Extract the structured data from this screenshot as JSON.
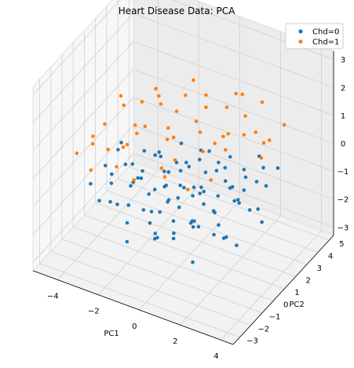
{
  "chart_data": {
    "type": "scatter",
    "projection": "3d",
    "title": "Heart Disease Data: PCA",
    "xlabel": "PC1",
    "ylabel": "PC2",
    "zlabel": "",
    "xlim": [
      -5.2,
      4.6
    ],
    "ylim": [
      -3.6,
      5.4
    ],
    "zlim": [
      -3.3,
      3.3
    ],
    "xticks": [
      -4,
      -2,
      0,
      2,
      4
    ],
    "yticks": [
      -3,
      -2,
      -1,
      0,
      1,
      2,
      3,
      4,
      5
    ],
    "zticks": [
      -3,
      -2,
      -1,
      0,
      1,
      2,
      3
    ],
    "grid": true,
    "legend_position": "top-right",
    "series": [
      {
        "name": "Chd=0",
        "color": "#1f77b4",
        "points": [
          [
            -3.2,
            -2.1,
            -0.3
          ],
          [
            -2.8,
            -1.5,
            0.2
          ],
          [
            -2.5,
            -2.6,
            -0.5
          ],
          [
            -2.2,
            -0.8,
            0.1
          ],
          [
            -2.0,
            -1.9,
            -0.8
          ],
          [
            -1.8,
            -2.8,
            0.4
          ],
          [
            -1.6,
            -1.2,
            -0.2
          ],
          [
            -1.5,
            -0.4,
            0.6
          ],
          [
            -1.3,
            -2.3,
            -1.1
          ],
          [
            -1.1,
            -1.7,
            0.3
          ],
          [
            -1.0,
            -0.9,
            -0.6
          ],
          [
            -0.9,
            -2.9,
            -0.1
          ],
          [
            -0.8,
            -0.2,
            0.5
          ],
          [
            -0.6,
            -1.4,
            -0.9
          ],
          [
            -0.5,
            -2.5,
            0.8
          ],
          [
            -0.4,
            -0.6,
            -0.3
          ],
          [
            -0.3,
            0.3,
            0.2
          ],
          [
            -0.2,
            -1.8,
            -1.4
          ],
          [
            -0.1,
            -1.0,
            0.0
          ],
          [
            0.0,
            -2.2,
            0.4
          ],
          [
            0.1,
            -0.3,
            -0.7
          ],
          [
            0.2,
            0.5,
            0.1
          ],
          [
            0.3,
            -1.5,
            -0.2
          ],
          [
            0.4,
            -2.7,
            -1.0
          ],
          [
            0.5,
            -0.8,
            0.6
          ],
          [
            0.6,
            0.2,
            -0.4
          ],
          [
            0.7,
            -1.2,
            0.3
          ],
          [
            0.8,
            -2.0,
            -0.6
          ],
          [
            0.9,
            0.7,
            0.0
          ],
          [
            1.0,
            -0.5,
            -1.2
          ],
          [
            1.1,
            -1.6,
            0.5
          ],
          [
            1.2,
            0.0,
            -0.3
          ],
          [
            1.3,
            -2.4,
            0.2
          ],
          [
            1.4,
            0.9,
            -0.8
          ],
          [
            1.5,
            -0.9,
            0.1
          ],
          [
            1.6,
            -1.9,
            -0.5
          ],
          [
            1.7,
            0.4,
            0.7
          ],
          [
            1.8,
            -0.2,
            -1.6
          ],
          [
            1.9,
            -1.3,
            0.0
          ],
          [
            2.0,
            1.1,
            -0.4
          ],
          [
            2.1,
            -2.6,
            -0.2
          ],
          [
            2.2,
            0.1,
            0.3
          ],
          [
            2.3,
            -0.7,
            -0.9
          ],
          [
            2.4,
            1.4,
            0.2
          ],
          [
            2.5,
            -1.4,
            -0.1
          ],
          [
            2.6,
            0.6,
            -0.6
          ],
          [
            2.7,
            -0.4,
            0.4
          ],
          [
            2.8,
            1.8,
            -0.3
          ],
          [
            2.9,
            -1.1,
            -1.0
          ],
          [
            3.0,
            0.3,
            0.1
          ],
          [
            3.1,
            2.1,
            -0.5
          ],
          [
            3.2,
            -0.6,
            0.2
          ],
          [
            3.3,
            1.0,
            -0.8
          ],
          [
            3.4,
            2.6,
            0.0
          ],
          [
            3.5,
            -0.1,
            -0.3
          ],
          [
            -2.6,
            0.4,
            -1.3
          ],
          [
            -2.3,
            0.9,
            -0.9
          ],
          [
            -1.9,
            1.3,
            -0.4
          ],
          [
            -1.4,
            1.6,
            -1.0
          ],
          [
            -0.7,
            1.9,
            -0.6
          ],
          [
            -0.2,
            2.3,
            -0.2
          ],
          [
            0.4,
            2.6,
            -0.9
          ],
          [
            0.9,
            2.9,
            -0.4
          ],
          [
            1.5,
            3.2,
            -1.1
          ],
          [
            2.2,
            3.5,
            -0.7
          ],
          [
            -1.7,
            -0.1,
            -1.7
          ],
          [
            -0.9,
            0.6,
            -1.5
          ],
          [
            0.0,
            1.2,
            -1.3
          ],
          [
            0.8,
            1.6,
            -1.8
          ],
          [
            1.6,
            2.0,
            -1.4
          ],
          [
            -3.0,
            -0.7,
            -1.5
          ],
          [
            -2.4,
            -1.1,
            0.7
          ],
          [
            -1.2,
            -2.0,
            0.9
          ],
          [
            0.3,
            -1.9,
            1.0
          ],
          [
            1.1,
            -0.2,
            0.9
          ],
          [
            2.0,
            -1.7,
            0.8
          ],
          [
            -0.4,
            0.9,
            0.6
          ],
          [
            0.7,
            1.4,
            0.4
          ],
          [
            -1.1,
            0.2,
            0.4
          ],
          [
            2.6,
            2.4,
            0.3
          ],
          [
            0.2,
            -3.0,
            -0.4
          ],
          [
            -2.0,
            -2.4,
            0.5
          ],
          [
            1.3,
            -2.9,
            -0.7
          ],
          [
            3.6,
            0.8,
            -1.1
          ],
          [
            -0.6,
            -1.1,
            -2.0
          ],
          [
            0.5,
            0.8,
            -2.1
          ],
          [
            1.9,
            0.5,
            -2.0
          ],
          [
            -1.5,
            1.0,
            -2.2
          ],
          [
            2.4,
            -0.3,
            1.0
          ],
          [
            -2.9,
            0.1,
            0.3
          ],
          [
            0.0,
            -0.5,
            -1.9
          ],
          [
            1.2,
            -1.0,
            -2.4
          ],
          [
            -0.3,
            1.7,
            -2.5
          ],
          [
            2.8,
            0.0,
            -1.8
          ],
          [
            -1.8,
            -1.4,
            -2.3
          ]
        ]
      },
      {
        "name": "Chd=1",
        "color": "#ff7f0e",
        "points": [
          [
            -3.0,
            -1.2,
            1.5
          ],
          [
            -2.7,
            -0.3,
            2.2
          ],
          [
            -2.4,
            -2.0,
            1.1
          ],
          [
            -2.1,
            0.5,
            1.8
          ],
          [
            -1.9,
            -1.5,
            2.6
          ],
          [
            -1.7,
            -0.7,
            1.3
          ],
          [
            -1.5,
            0.9,
            2.0
          ],
          [
            -1.3,
            -2.3,
            1.7
          ],
          [
            -1.1,
            -0.1,
            2.8
          ],
          [
            -0.9,
            1.4,
            1.4
          ],
          [
            -0.7,
            -1.8,
            2.3
          ],
          [
            -0.5,
            0.4,
            1.0
          ],
          [
            -0.3,
            1.8,
            2.5
          ],
          [
            -0.1,
            -0.9,
            1.6
          ],
          [
            0.1,
            2.2,
            1.9
          ],
          [
            0.3,
            0.0,
            2.9
          ],
          [
            0.5,
            -1.3,
            1.2
          ],
          [
            0.7,
            1.1,
            2.1
          ],
          [
            0.9,
            2.6,
            1.5
          ],
          [
            1.1,
            -0.5,
            2.4
          ],
          [
            1.3,
            0.8,
            1.1
          ],
          [
            1.5,
            2.9,
            2.0
          ],
          [
            1.7,
            -1.0,
            1.7
          ],
          [
            1.9,
            1.6,
            2.7
          ],
          [
            2.1,
            0.3,
            1.3
          ],
          [
            2.3,
            3.2,
            1.8
          ],
          [
            2.5,
            -0.2,
            2.2
          ],
          [
            2.7,
            1.9,
            1.4
          ],
          [
            2.9,
            0.6,
            2.6
          ],
          [
            3.1,
            2.4,
            1.0
          ],
          [
            -3.6,
            -2.6,
            0.9
          ],
          [
            -3.3,
            -1.7,
            1.2
          ],
          [
            -2.8,
            -2.8,
            0.6
          ],
          [
            -2.2,
            -1.0,
            0.8
          ],
          [
            -1.6,
            -2.7,
            1.0
          ],
          [
            -0.8,
            -2.6,
            0.7
          ],
          [
            0.0,
            -1.6,
            0.9
          ],
          [
            0.6,
            -2.4,
            1.1
          ],
          [
            1.4,
            -1.8,
            0.6
          ],
          [
            2.2,
            -1.2,
            0.9
          ],
          [
            -3.8,
            -0.8,
            0.4
          ],
          [
            -2.6,
            0.8,
            0.7
          ],
          [
            -1.2,
            1.2,
            0.8
          ],
          [
            0.2,
            1.5,
            0.9
          ],
          [
            1.0,
            2.1,
            0.7
          ],
          [
            1.8,
            2.5,
            0.8
          ],
          [
            2.6,
            2.8,
            0.6
          ],
          [
            3.3,
            1.3,
            0.9
          ],
          [
            3.5,
            3.0,
            1.4
          ],
          [
            -2.0,
            2.0,
            1.1
          ]
        ]
      }
    ]
  }
}
